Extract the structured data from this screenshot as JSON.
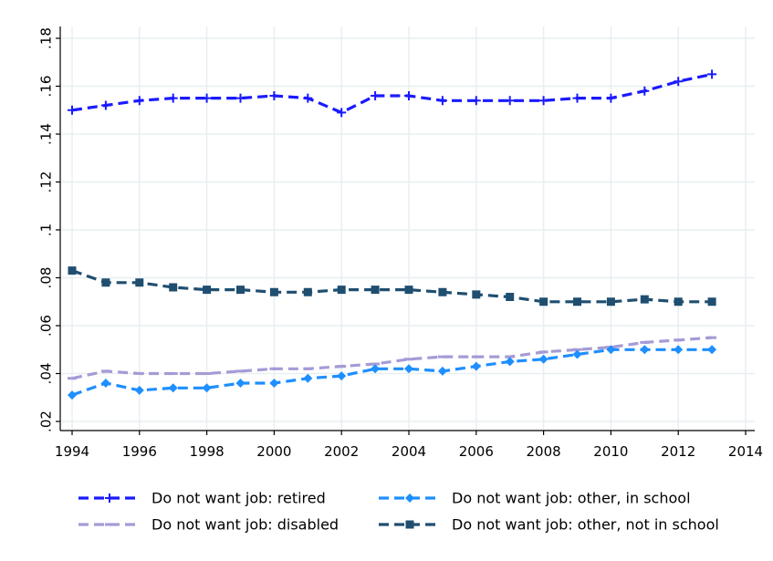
{
  "chart_data": {
    "type": "line",
    "title": "",
    "xlabel": "",
    "ylabel": "",
    "x": [
      1994,
      1995,
      1996,
      1997,
      1998,
      1999,
      2000,
      2001,
      2002,
      2003,
      2004,
      2005,
      2006,
      2007,
      2008,
      2009,
      2010,
      2011,
      2012,
      2013
    ],
    "xlim": [
      1994,
      2014
    ],
    "ylim": [
      0.02,
      0.18
    ],
    "xticks": [
      1994,
      1996,
      1998,
      2000,
      2002,
      2004,
      2006,
      2008,
      2010,
      2012,
      2014
    ],
    "xtick_labels": [
      "1994",
      "1996",
      "1998",
      "2000",
      "2002",
      "2004",
      "2006",
      "2008",
      "2010",
      "2012",
      "2014"
    ],
    "yticks": [
      0.02,
      0.04,
      0.06,
      0.08,
      0.1,
      0.12,
      0.14,
      0.16,
      0.18
    ],
    "ytick_labels": [
      ".02",
      ".04",
      ".06",
      ".08",
      ".1",
      ".12",
      ".14",
      ".16",
      ".18"
    ],
    "grid": true,
    "legend_position": "bottom",
    "series": [
      {
        "name": "Do not want job: retired",
        "color": "#1a1aff",
        "marker": "plus",
        "values": [
          0.15,
          0.152,
          0.154,
          0.155,
          0.155,
          0.155,
          0.156,
          0.155,
          0.149,
          0.156,
          0.156,
          0.154,
          0.154,
          0.154,
          0.154,
          0.155,
          0.155,
          0.158,
          0.162,
          0.165
        ]
      },
      {
        "name": "Do not want job: disabled",
        "color": "#a59bd6",
        "marker": "dash",
        "values": [
          0.038,
          0.041,
          0.04,
          0.04,
          0.04,
          0.041,
          0.042,
          0.042,
          0.043,
          0.044,
          0.046,
          0.047,
          0.047,
          0.047,
          0.049,
          0.05,
          0.051,
          0.053,
          0.054,
          0.055
        ]
      },
      {
        "name": "Do not want job: other, in school",
        "color": "#1e8fff",
        "marker": "diamond",
        "values": [
          0.031,
          0.036,
          0.033,
          0.034,
          0.034,
          0.036,
          0.036,
          0.038,
          0.039,
          0.042,
          0.042,
          0.041,
          0.043,
          0.045,
          0.046,
          0.048,
          0.05,
          0.05,
          0.05,
          0.05
        ]
      },
      {
        "name": "Do not want job: other, not in school",
        "color": "#1f4e70",
        "marker": "square",
        "values": [
          0.083,
          0.078,
          0.078,
          0.076,
          0.075,
          0.075,
          0.074,
          0.074,
          0.075,
          0.075,
          0.075,
          0.074,
          0.073,
          0.072,
          0.07,
          0.07,
          0.07,
          0.071,
          0.07,
          0.07
        ]
      }
    ]
  }
}
